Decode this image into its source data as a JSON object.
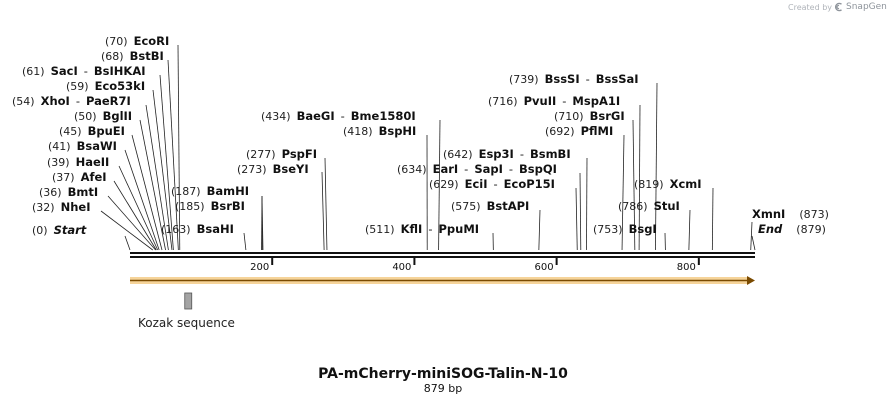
{
  "credit": {
    "text": "Created by",
    "brand": "SnapGene",
    "logo_icon": "snapgene-logo-icon"
  },
  "sequence": {
    "name": "PA-mCherry-miniSOG-Talin-N-10",
    "length_label": "879 bp",
    "length": 879
  },
  "ruler_ticks": [
    {
      "value": 200,
      "label": "200"
    },
    {
      "value": 400,
      "label": "400"
    },
    {
      "value": 600,
      "label": "600"
    },
    {
      "value": 800,
      "label": "800"
    }
  ],
  "features": [
    {
      "name": "orf-arrow",
      "start": 0,
      "end": 879,
      "color": "#e8a33c"
    },
    {
      "name": "kozak-sequence",
      "label": "Kozak sequence",
      "start": 77,
      "end": 86,
      "color": "#a4a4a4"
    }
  ],
  "sites": [
    {
      "id": "start",
      "pos": 0,
      "pos_text": "(0)",
      "names": [
        "Start"
      ],
      "italic": true
    },
    {
      "id": "nhei",
      "pos": 32,
      "pos_text": "(32)",
      "names": [
        "NheI"
      ]
    },
    {
      "id": "bmti",
      "pos": 36,
      "pos_text": "(36)",
      "names": [
        "BmtI"
      ]
    },
    {
      "id": "afei",
      "pos": 37,
      "pos_text": "(37)",
      "names": [
        "AfeI"
      ]
    },
    {
      "id": "haeii",
      "pos": 39,
      "pos_text": "(39)",
      "names": [
        "HaeII"
      ]
    },
    {
      "id": "bsawi",
      "pos": 41,
      "pos_text": "(41)",
      "names": [
        "BsaWI"
      ]
    },
    {
      "id": "bpuei",
      "pos": 45,
      "pos_text": "(45)",
      "names": [
        "BpuEI"
      ]
    },
    {
      "id": "bglii",
      "pos": 50,
      "pos_text": "(50)",
      "names": [
        "BglII"
      ]
    },
    {
      "id": "xhoi",
      "pos": 54,
      "pos_text": "(54)",
      "names": [
        "XhoI",
        "PaeR7I"
      ]
    },
    {
      "id": "eco53ki",
      "pos": 59,
      "pos_text": "(59)",
      "names": [
        "Eco53kI"
      ]
    },
    {
      "id": "saci",
      "pos": 61,
      "pos_text": "(61)",
      "names": [
        "SacI",
        "BsIHKAI"
      ]
    },
    {
      "id": "bstbi",
      "pos": 68,
      "pos_text": "(68)",
      "names": [
        "BstBI"
      ]
    },
    {
      "id": "ecori",
      "pos": 70,
      "pos_text": "(70)",
      "names": [
        "EcoRI"
      ]
    },
    {
      "id": "bsahi",
      "pos": 163,
      "pos_text": "(163)",
      "names": [
        "BsaHI"
      ]
    },
    {
      "id": "bsrbi",
      "pos": 185,
      "pos_text": "(185)",
      "names": [
        "BsrBI"
      ]
    },
    {
      "id": "bamhi",
      "pos": 187,
      "pos_text": "(187)",
      "names": [
        "BamHI"
      ]
    },
    {
      "id": "bseyi",
      "pos": 273,
      "pos_text": "(273)",
      "names": [
        "BseYI"
      ]
    },
    {
      "id": "pspfi",
      "pos": 277,
      "pos_text": "(277)",
      "names": [
        "PspFI"
      ]
    },
    {
      "id": "bsphi",
      "pos": 418,
      "pos_text": "(418)",
      "names": [
        "BspHI"
      ]
    },
    {
      "id": "baegi",
      "pos": 434,
      "pos_text": "(434)",
      "names": [
        "BaeGI",
        "Bme1580I"
      ]
    },
    {
      "id": "kfli",
      "pos": 511,
      "pos_text": "(511)",
      "names": [
        "KflI",
        "PpuMI"
      ]
    },
    {
      "id": "bstapi",
      "pos": 575,
      "pos_text": "(575)",
      "names": [
        "BstAPI"
      ]
    },
    {
      "id": "ecii",
      "pos": 629,
      "pos_text": "(629)",
      "names": [
        "EciI",
        "EcoP15I"
      ]
    },
    {
      "id": "eari",
      "pos": 634,
      "pos_text": "(634)",
      "names": [
        "EarI",
        "SapI",
        "BspQI"
      ]
    },
    {
      "id": "esp3i",
      "pos": 642,
      "pos_text": "(642)",
      "names": [
        "Esp3I",
        "BsmBI"
      ]
    },
    {
      "id": "pflmi",
      "pos": 692,
      "pos_text": "(692)",
      "names": [
        "PflMI"
      ]
    },
    {
      "id": "bsrgi",
      "pos": 710,
      "pos_text": "(710)",
      "names": [
        "BsrGI"
      ]
    },
    {
      "id": "pvuii",
      "pos": 716,
      "pos_text": "(716)",
      "names": [
        "PvuII",
        "MspA1I"
      ]
    },
    {
      "id": "bsssi",
      "pos": 739,
      "pos_text": "(739)",
      "names": [
        "BssSI",
        "BssSaI"
      ]
    },
    {
      "id": "bsgi",
      "pos": 753,
      "pos_text": "(753)",
      "names": [
        "BsgI"
      ]
    },
    {
      "id": "stui",
      "pos": 786,
      "pos_text": "(786)",
      "names": [
        "StuI"
      ]
    },
    {
      "id": "xcmi",
      "pos": 819,
      "pos_text": "(819)",
      "names": [
        "XcmI"
      ]
    },
    {
      "id": "xmni",
      "pos": 873,
      "pos_text": "(873)",
      "names": [
        "XmnI"
      ],
      "pos_after": true
    },
    {
      "id": "end",
      "pos": 879,
      "pos_text": "(879)",
      "names": [
        "End"
      ],
      "italic": true,
      "pos_after": true
    }
  ]
}
